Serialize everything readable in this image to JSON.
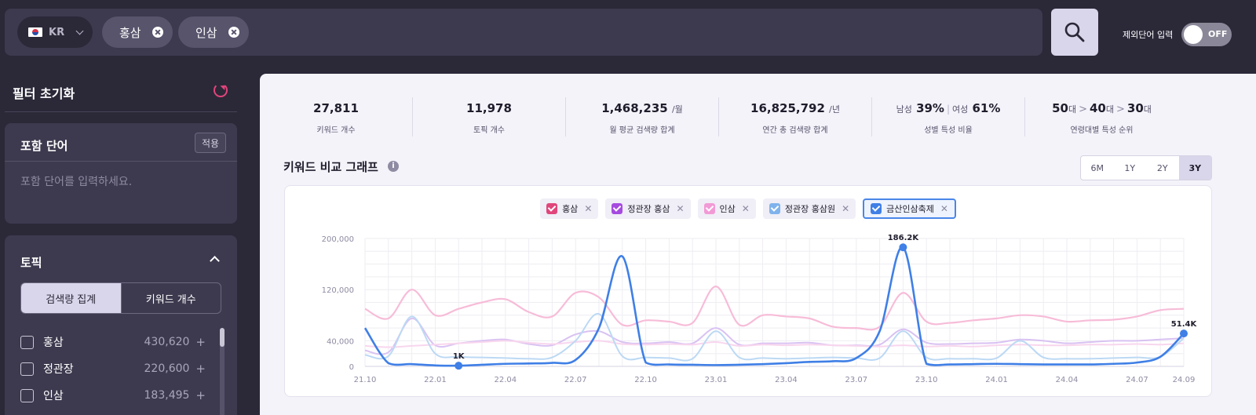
{
  "search": {
    "country": "KR",
    "tags": [
      "홍삼",
      "인삼"
    ]
  },
  "exclude": {
    "label": "제외단어 입력",
    "state": "OFF"
  },
  "sidebar": {
    "reset_label": "필터 초기화",
    "include": {
      "title": "포함 단어",
      "apply": "적용",
      "placeholder": "포함 단어를 입력하세요."
    },
    "topic": {
      "title": "토픽",
      "tabs": [
        "검색량 집계",
        "키워드 개수"
      ],
      "items": [
        {
          "label": "홍삼",
          "count": "430,620"
        },
        {
          "label": "정관장",
          "count": "220,600"
        },
        {
          "label": "인삼",
          "count": "183,495"
        }
      ]
    }
  },
  "stats": [
    {
      "value": "27,811",
      "label": "키워드 개수"
    },
    {
      "value": "11,978",
      "label": "토픽 개수"
    },
    {
      "value": "1,468,235",
      "unit": "/월",
      "label": "월 평균 검색량 합계"
    },
    {
      "value": "16,825,792",
      "unit": "/년",
      "label": "연간 총 검색량 합계"
    }
  ],
  "gender": {
    "male_label": "남성",
    "male": "39%",
    "female_label": "여성",
    "female": "61%",
    "label": "성별 특성 비율"
  },
  "age": {
    "a1": "50",
    "a2": "40",
    "a3": "30",
    "unit": "대",
    "label": "연령대별 특성 순위"
  },
  "graph": {
    "title": "키워드 비교 그래프",
    "periods": [
      "6M",
      "1Y",
      "2Y",
      "3Y"
    ],
    "active_period": "3Y"
  },
  "chart_data": {
    "type": "line",
    "x": [
      "21.10",
      "21.11",
      "21.12",
      "22.01",
      "22.02",
      "22.03",
      "22.04",
      "22.05",
      "22.06",
      "22.07",
      "22.08",
      "22.09",
      "22.10",
      "22.11",
      "22.12",
      "23.01",
      "23.02",
      "23.03",
      "23.04",
      "23.05",
      "23.06",
      "23.07",
      "23.08",
      "23.09",
      "23.10",
      "23.11",
      "23.12",
      "24.01",
      "24.02",
      "24.03",
      "24.04",
      "24.05",
      "24.06",
      "24.07",
      "24.08",
      "24.09"
    ],
    "x_tick_labels": [
      "21.10",
      "22.01",
      "22.04",
      "22.07",
      "22.10",
      "23.01",
      "23.04",
      "23.07",
      "23.10",
      "24.01",
      "24.04",
      "24.07",
      "24.09"
    ],
    "y_ticks": [
      0,
      40000,
      120000,
      200000
    ],
    "y_tick_labels": [
      "0",
      "40,000",
      "120,000",
      "200,000"
    ],
    "ylim": [
      0,
      200000
    ],
    "grid": true,
    "series": [
      {
        "name": "홍삼",
        "color": "#f7bcd8",
        "width": 2.2,
        "values": [
          90000,
          75000,
          120000,
          80000,
          90000,
          100000,
          105000,
          85000,
          78000,
          115000,
          108000,
          65000,
          72000,
          70000,
          68000,
          125000,
          65000,
          80000,
          78000,
          75000,
          62000,
          60000,
          62000,
          115000,
          70000,
          68000,
          72000,
          75000,
          80000,
          78000,
          70000,
          72000,
          73000,
          78000,
          88000,
          90000
        ]
      },
      {
        "name": "정관장 홍삼",
        "color": "#d9c2f2",
        "width": 2,
        "values": [
          25000,
          22000,
          75000,
          33000,
          36000,
          40000,
          42000,
          35000,
          33000,
          50000,
          55000,
          38000,
          36000,
          38000,
          36000,
          60000,
          34000,
          36000,
          36000,
          37000,
          33000,
          33000,
          34000,
          58000,
          37000,
          35000,
          36000,
          37000,
          42000,
          40000,
          36000,
          38000,
          40000,
          40000,
          42000,
          44000
        ]
      },
      {
        "name": "인삼",
        "color": "#f8d6ee",
        "width": 2,
        "values": [
          32000,
          30000,
          32000,
          34000,
          36000,
          38000,
          40000,
          37000,
          35000,
          38000,
          40000,
          35000,
          34000,
          35000,
          34000,
          38000,
          32000,
          34000,
          33000,
          34000,
          33000,
          32000,
          31000,
          33000,
          31000,
          32000,
          31000,
          33000,
          34000,
          33000,
          33000,
          34000,
          34000,
          35000,
          34000,
          36000
        ]
      },
      {
        "name": "정관장 홍삼원",
        "color": "#bcd9f4",
        "width": 2,
        "values": [
          18000,
          16000,
          78000,
          20000,
          15000,
          14000,
          13000,
          12000,
          14000,
          40000,
          82000,
          16000,
          14000,
          13000,
          12000,
          55000,
          14000,
          13000,
          12000,
          13000,
          14000,
          13000,
          13000,
          55000,
          14000,
          12000,
          12000,
          13000,
          40000,
          14000,
          12000,
          12000,
          13000,
          14000,
          15000,
          44000
        ]
      },
      {
        "name": "금산인삼축제",
        "color": "#3f7fe6",
        "width": 2.6,
        "values": [
          60000,
          5000,
          3500,
          1500,
          1000,
          2500,
          4000,
          4500,
          5500,
          10000,
          60000,
          172000,
          6000,
          3000,
          2500,
          2000,
          2500,
          3500,
          5000,
          7000,
          8000,
          13000,
          55000,
          186200,
          4000,
          3000,
          3500,
          4000,
          3500,
          3000,
          3000,
          3000,
          4000,
          6000,
          15000,
          51400
        ],
        "labels": [
          {
            "index": 4,
            "text": "1K"
          },
          {
            "index": 23,
            "text": "186.2K"
          },
          {
            "index": 35,
            "text": "51.4K"
          }
        ]
      }
    ]
  }
}
